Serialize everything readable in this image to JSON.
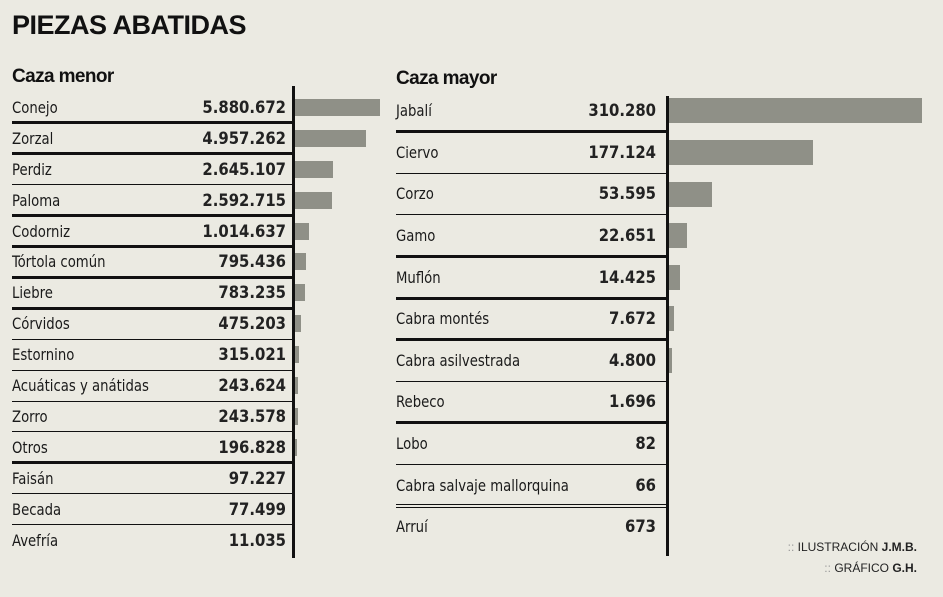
{
  "title": "PIEZAS ABATIDAS",
  "chart_data": [
    {
      "type": "bar",
      "orientation": "horizontal",
      "title": "Caza menor",
      "categories": [
        "Conejo",
        "Zorzal",
        "Perdiz",
        "Paloma",
        "Codorniz",
        "Tórtola común",
        "Liebre",
        "Córvidos",
        "Estornino",
        "Acuáticas y anátidas",
        "Zorro",
        "Otros",
        "Faisán",
        "Becada",
        "Avefría"
      ],
      "values": [
        5880672,
        4957262,
        2645107,
        2592715,
        1014637,
        795436,
        783235,
        475203,
        315021,
        243624,
        243578,
        196828,
        97227,
        77499,
        11035
      ],
      "labels": [
        "5.880.672",
        "4.957.262",
        "2.645.107",
        "2.592.715",
        "1.014.637",
        "795.436",
        "783.235",
        "475.203",
        "315.021",
        "243.624",
        "243.578",
        "196.828",
        "97.227",
        "77.499",
        "11.035"
      ],
      "bar_color": "#8f9087",
      "grid": false
    },
    {
      "type": "bar",
      "orientation": "horizontal",
      "title": "Caza mayor",
      "categories": [
        "Jabalí",
        "Ciervo",
        "Corzo",
        "Gamo",
        "Muflón",
        "Cabra montés",
        "Cabra asilvestrada",
        "Rebeco",
        "Lobo",
        "Cabra salvaje mallorquina",
        "Arruí"
      ],
      "values": [
        310280,
        177124,
        53595,
        22651,
        14425,
        7672,
        4800,
        1696,
        82,
        66,
        673
      ],
      "labels": [
        "310.280",
        "177.124",
        "53.595",
        "22.651",
        "14.425",
        "7.672",
        "4.800",
        "1.696",
        "82",
        "66",
        "673"
      ],
      "bar_color": "#8f9087",
      "grid": false
    }
  ],
  "credits": {
    "illustration_label": "ILUSTRACIÓN",
    "illustration_author": "J.M.B.",
    "graphic_label": "GRÁFICO",
    "graphic_author": "G.H.",
    "bullet": "::"
  },
  "background_color": "#ebeae2"
}
